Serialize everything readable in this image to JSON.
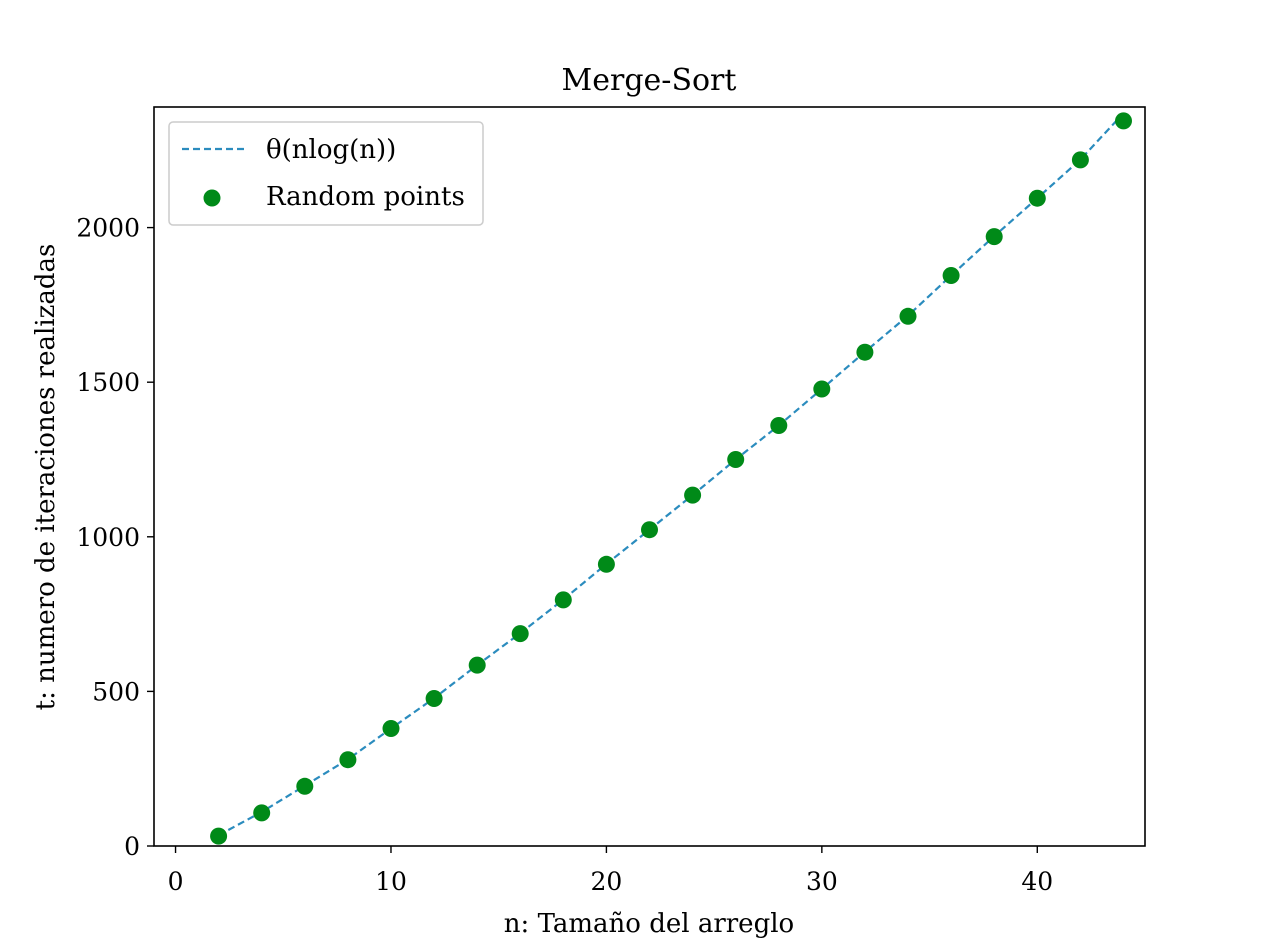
{
  "chart_data": {
    "type": "scatter",
    "title": "Merge-Sort",
    "xlabel": "n: Tamaño del arreglo",
    "ylabel": "t: numero de iteraciones realizadas",
    "xlim": [
      -1,
      45
    ],
    "ylim": [
      0,
      2390
    ],
    "xticks": [
      0,
      10,
      20,
      30,
      40
    ],
    "yticks": [
      0,
      500,
      1000,
      1500,
      2000
    ],
    "grid": false,
    "legend_position": "top-left",
    "colors": {
      "fit_line": "#2b8cbe",
      "points": "#008a18",
      "axes": "#000000",
      "legend_border": "#cccccc"
    },
    "series": [
      {
        "name": "θ(nlog(n))",
        "kind": "line",
        "style": "dashed",
        "x": [
          2,
          4,
          6,
          8,
          10,
          12,
          14,
          16,
          18,
          20,
          22,
          24,
          26,
          28,
          30,
          32,
          34,
          36,
          38,
          40,
          42,
          44
        ],
        "y": [
          35,
          110,
          195,
          280,
          380,
          478,
          585,
          688,
          797,
          912,
          1023,
          1135,
          1250,
          1360,
          1478,
          1598,
          1715,
          1845,
          1972,
          2095,
          2220,
          2370
        ]
      },
      {
        "name": "Random points",
        "kind": "scatter",
        "x": [
          2,
          4,
          6,
          8,
          10,
          12,
          14,
          16,
          18,
          20,
          22,
          24,
          26,
          28,
          30,
          32,
          34,
          36,
          38,
          40,
          42,
          44
        ],
        "y": [
          32,
          107,
          193,
          279,
          380,
          477,
          585,
          687,
          796,
          911,
          1023,
          1135,
          1250,
          1360,
          1478,
          1597,
          1713,
          1845,
          1971,
          2095,
          2219,
          2345
        ]
      }
    ]
  }
}
